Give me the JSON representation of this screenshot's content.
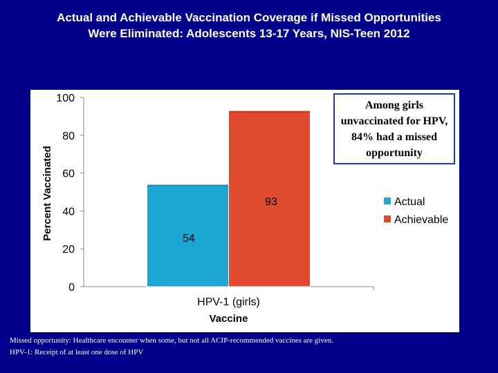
{
  "title": {
    "line1": "Actual and Achievable Vaccination Coverage if Missed Opportunities",
    "line2": "Were Eliminated: Adolescents 13-17 Years, NIS-Teen 2012"
  },
  "callout": "Among girls unvaccinated for HPV, 84% had a missed opportunity",
  "footnotes": [
    "Missed opportunity: Healthcare encounter when some, but not all ACIP-recommended vaccines are given.",
    "HPV-1: Receipt of at least one dose of HPV"
  ],
  "chart_data": {
    "type": "bar",
    "categories": [
      "HPV-1 (girls)"
    ],
    "series": [
      {
        "name": "Actual",
        "values": [
          54
        ],
        "color": "#1ba7d2"
      },
      {
        "name": "Achievable",
        "values": [
          93
        ],
        "color": "#e04a2f"
      }
    ],
    "xlabel": "Vaccine",
    "ylabel": "Percent Vaccinated",
    "ylim": [
      0,
      100
    ],
    "yticks": [
      0,
      20,
      40,
      60,
      80,
      100
    ],
    "data_labels": [
      "54",
      "93"
    ],
    "grid": false,
    "legend": "right"
  }
}
